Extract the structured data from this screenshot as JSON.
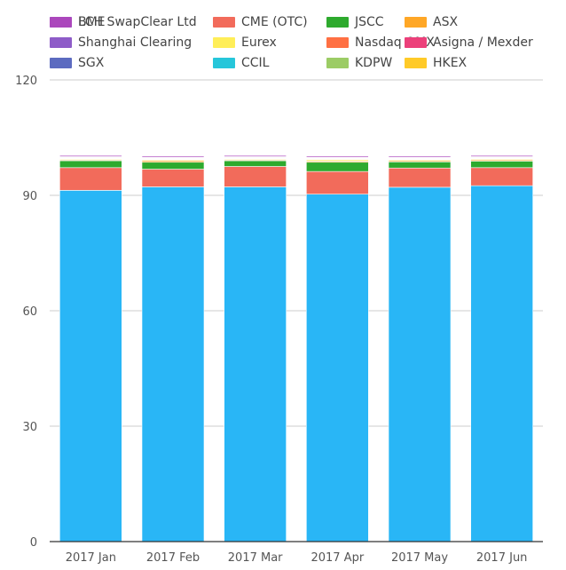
{
  "chart_data": {
    "type": "bar",
    "stacked": true,
    "categories": [
      "2017 Jan",
      "2017 Feb",
      "2017 Mar",
      "2017 Apr",
      "2017 May",
      "2017 Jun"
    ],
    "ylim": [
      0,
      120
    ],
    "yticks": [
      0,
      30,
      60,
      90,
      120
    ],
    "grid": true,
    "legend_position": "top",
    "series": [
      {
        "name": "LCH SwapClear Ltd",
        "color": "#29b6f6",
        "values": [
          91.3,
          92.2,
          92.2,
          90.3,
          92.1,
          92.5
        ]
      },
      {
        "name": "CME (OTC)",
        "color": "#f26b5b",
        "values": [
          5.9,
          4.6,
          5.3,
          5.9,
          5.0,
          4.7
        ]
      },
      {
        "name": "JSCC",
        "color": "#2eaa2e",
        "values": [
          1.8,
          1.8,
          1.5,
          2.4,
          1.6,
          1.7
        ]
      },
      {
        "name": "ASX",
        "color": "#ffa726",
        "values": [
          0.2,
          0.4,
          0.2,
          0.3,
          0.3,
          0.3
        ]
      },
      {
        "name": "Shanghai Clearing",
        "color": "#8e5cc8",
        "values": [
          0.1,
          0.1,
          0.1,
          0.1,
          0.1,
          0.1
        ]
      },
      {
        "name": "Eurex",
        "color": "#ffee58",
        "values": [
          0.2,
          0.2,
          0.2,
          0.3,
          0.2,
          0.2
        ]
      },
      {
        "name": "Nasdaq OMX",
        "color": "#ff7043",
        "values": [
          0.1,
          0.1,
          0.1,
          0.1,
          0.1,
          0.1
        ]
      },
      {
        "name": "Asigna / Mexder",
        "color": "#ec407a",
        "values": [
          0.1,
          0.1,
          0.1,
          0.1,
          0.1,
          0.1
        ]
      },
      {
        "name": "SGX",
        "color": "#5c6bc0",
        "values": [
          0.1,
          0.1,
          0.1,
          0.1,
          0.1,
          0.1
        ]
      },
      {
        "name": "CCIL",
        "color": "#26c6da",
        "values": [
          0.1,
          0.1,
          0.1,
          0.1,
          0.1,
          0.1
        ]
      },
      {
        "name": "KDPW",
        "color": "#9ccc65",
        "values": [
          0.05,
          0.05,
          0.05,
          0.05,
          0.05,
          0.05
        ]
      },
      {
        "name": "HKEX",
        "color": "#ffca28",
        "values": [
          0.1,
          0.1,
          0.1,
          0.1,
          0.1,
          0.1
        ]
      },
      {
        "name": "BME",
        "color": "#ab47bc",
        "values": [
          0.3,
          0.3,
          0.3,
          0.3,
          0.3,
          0.3
        ]
      }
    ]
  }
}
